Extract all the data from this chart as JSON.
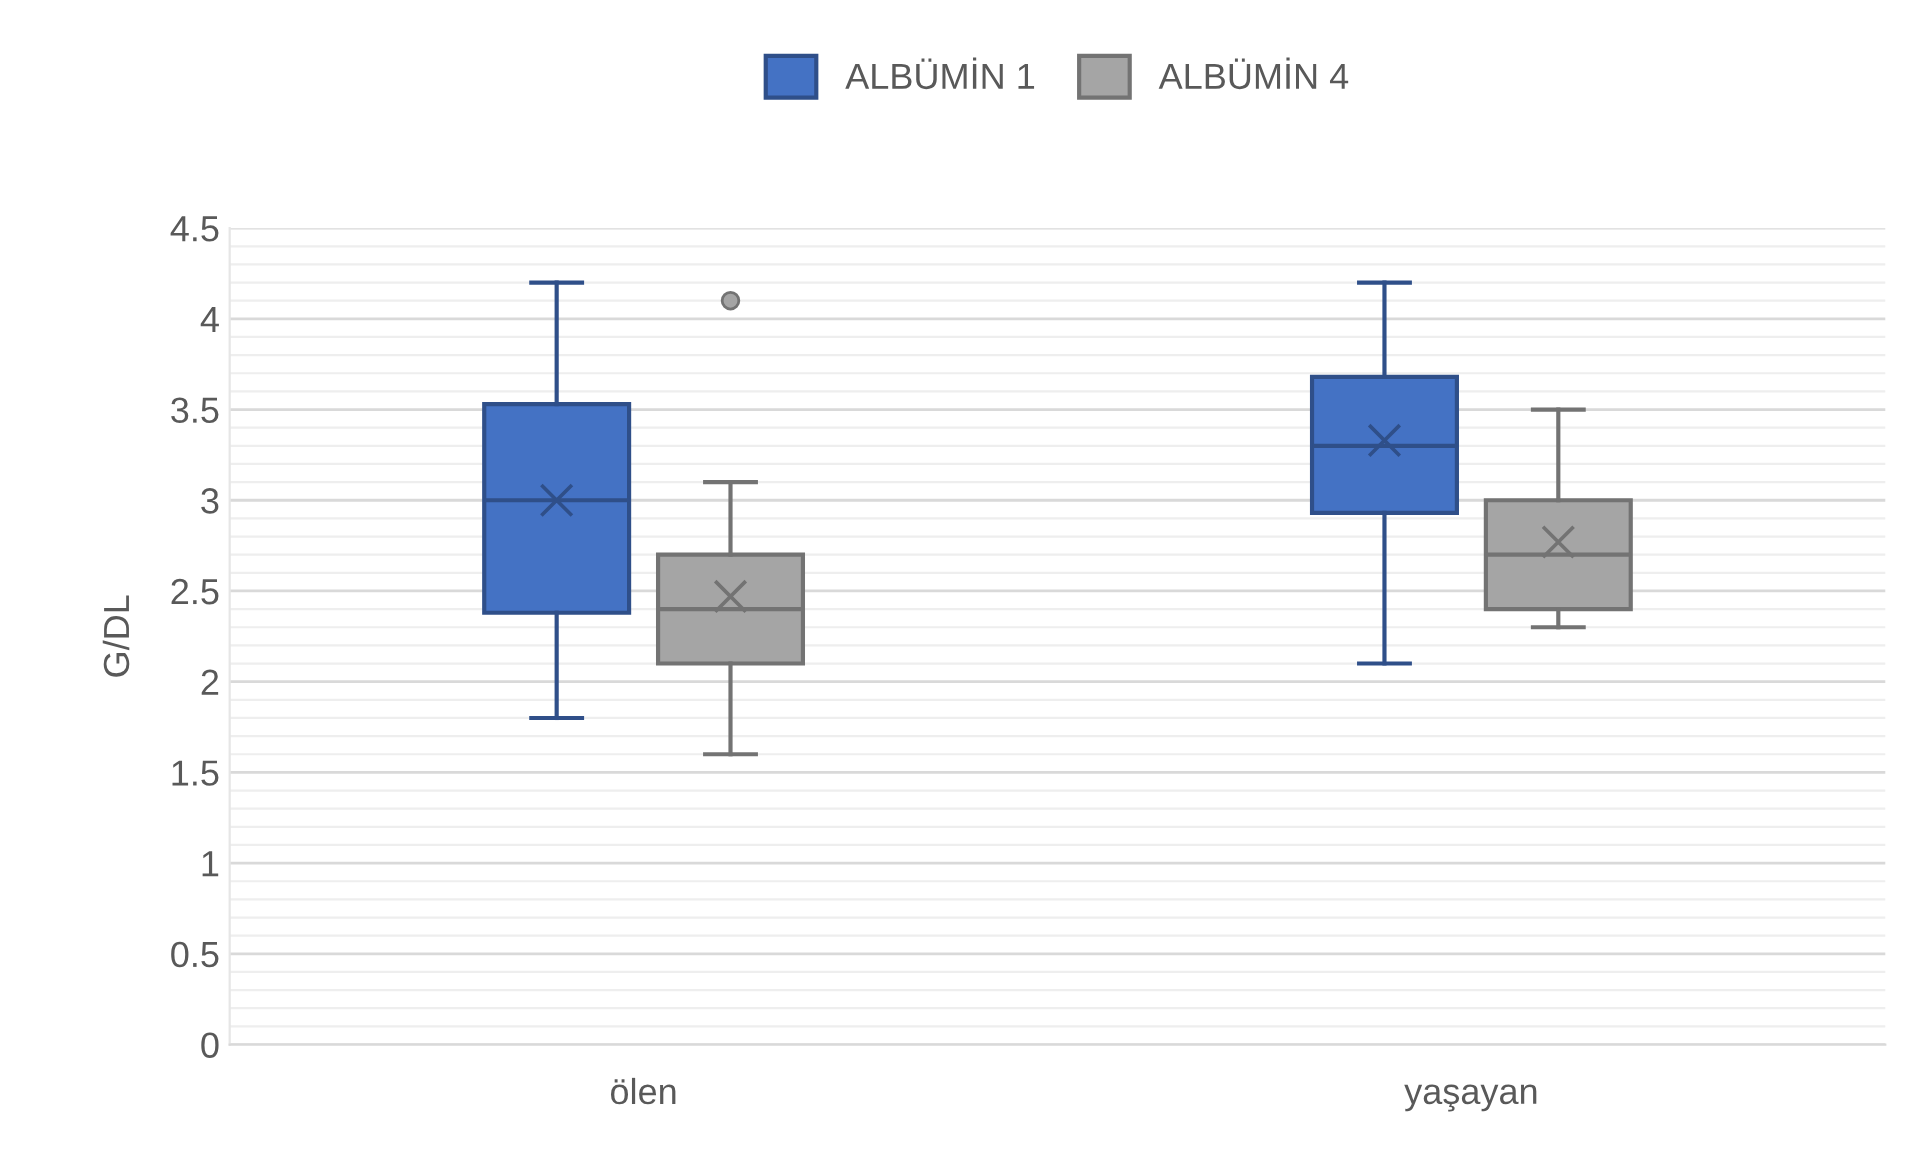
{
  "chart_data": {
    "type": "box",
    "ylabel": "G/DL",
    "categories": [
      "ölen",
      "yaşayan"
    ],
    "series": [
      {
        "name": "ALBÜMİN 1",
        "color": "#4472c4",
        "boxes": [
          {
            "low": 1.8,
            "q1": 2.38,
            "median": 3.0,
            "q3": 3.53,
            "high": 4.2,
            "mean": 3.0
          },
          {
            "low": 2.1,
            "q1": 2.93,
            "median": 3.3,
            "q3": 3.68,
            "high": 4.2,
            "mean": 3.33
          }
        ]
      },
      {
        "name": "ALBÜMİN 4",
        "color": "#a5a5a5",
        "boxes": [
          {
            "low": 1.6,
            "q1": 2.1,
            "median": 2.4,
            "q3": 2.7,
            "high": 3.1,
            "mean": 2.47,
            "outliers": [
              4.1
            ]
          },
          {
            "low": 2.3,
            "q1": 2.4,
            "median": 2.7,
            "q3": 3.0,
            "high": 3.5,
            "mean": 2.77
          }
        ]
      }
    ],
    "ylim": [
      0,
      4.5
    ],
    "yticks": [
      0,
      0.5,
      1,
      1.5,
      2,
      2.5,
      3,
      3.5,
      4,
      4.5
    ],
    "grid": "y",
    "legend": "top"
  }
}
